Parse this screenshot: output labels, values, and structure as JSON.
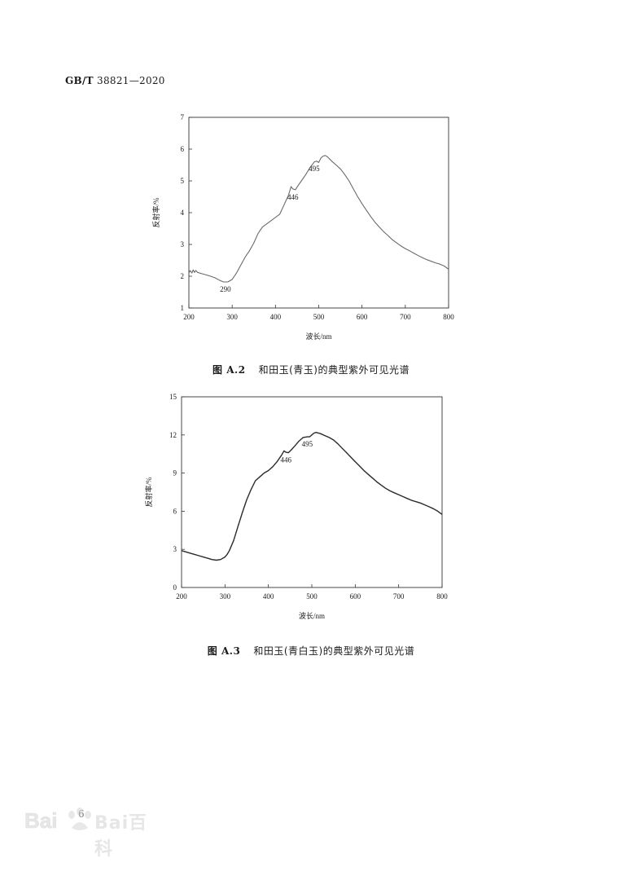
{
  "header": {
    "code_prefix": "GB/T",
    "code_number": "38821—2020"
  },
  "figures": [
    {
      "fig_no": "图 A.2",
      "caption": "和田玉(青玉)的典型紫外可见光谱"
    },
    {
      "fig_no": "图 A.3",
      "caption": "和田玉(青白玉)的典型紫外可见光谱"
    }
  ],
  "page_number": "6",
  "watermark": {
    "text": "Bai百科",
    "logo": "baidu-paw-icon"
  },
  "colors": {
    "line_fig2": "#6a6a6a",
    "line_fig3": "#2a2a2a",
    "axis": "#333333"
  },
  "chart_data": [
    {
      "type": "line",
      "title": "",
      "xlabel": "波长/nm",
      "ylabel": "反射率/%",
      "xlim": [
        200,
        800
      ],
      "ylim": [
        1,
        7
      ],
      "xticks": [
        200,
        300,
        400,
        500,
        600,
        700,
        800
      ],
      "yticks": [
        1,
        2,
        3,
        4,
        5,
        6,
        7
      ],
      "grid": false,
      "series": [
        {
          "x": [
            200,
            203,
            207,
            210,
            213,
            216,
            220,
            230,
            240,
            250,
            260,
            270,
            280,
            290,
            300,
            310,
            320,
            330,
            340,
            350,
            360,
            370,
            380,
            390,
            400,
            410,
            420,
            430,
            436,
            440,
            446,
            452,
            460,
            470,
            480,
            490,
            495,
            500,
            505,
            510,
            515,
            520,
            530,
            540,
            550,
            560,
            570,
            580,
            590,
            600,
            610,
            620,
            630,
            640,
            650,
            660,
            670,
            680,
            690,
            700,
            710,
            720,
            730,
            740,
            750,
            760,
            770,
            780,
            790,
            800
          ],
          "y": [
            2.1,
            2.18,
            2.1,
            2.2,
            2.12,
            2.18,
            2.12,
            2.08,
            2.04,
            2.0,
            1.95,
            1.88,
            1.82,
            1.82,
            1.9,
            2.1,
            2.35,
            2.6,
            2.8,
            3.05,
            3.35,
            3.55,
            3.65,
            3.75,
            3.85,
            3.95,
            4.25,
            4.55,
            4.82,
            4.75,
            4.72,
            4.85,
            5.0,
            5.2,
            5.42,
            5.6,
            5.62,
            5.58,
            5.72,
            5.78,
            5.8,
            5.76,
            5.62,
            5.5,
            5.38,
            5.2,
            5.0,
            4.75,
            4.5,
            4.28,
            4.08,
            3.88,
            3.7,
            3.55,
            3.4,
            3.28,
            3.15,
            3.05,
            2.95,
            2.87,
            2.8,
            2.72,
            2.65,
            2.58,
            2.52,
            2.47,
            2.42,
            2.38,
            2.32,
            2.22
          ]
        }
      ],
      "annotations": [
        {
          "text": "290",
          "x": 290,
          "y": 1.82,
          "pos": "below"
        },
        {
          "text": "446",
          "x": 446,
          "y": 4.72,
          "pos": "below"
        },
        {
          "text": "495",
          "x": 495,
          "y": 5.62,
          "pos": "below"
        }
      ]
    },
    {
      "type": "line",
      "title": "",
      "xlabel": "波长/nm",
      "ylabel": "反射率/%",
      "xlim": [
        200,
        800
      ],
      "ylim": [
        0,
        15
      ],
      "xticks": [
        200,
        300,
        400,
        500,
        600,
        700,
        800
      ],
      "yticks": [
        0,
        3,
        6,
        9,
        12,
        15
      ],
      "grid": false,
      "series": [
        {
          "x": [
            200,
            210,
            220,
            230,
            240,
            250,
            260,
            270,
            280,
            290,
            300,
            305,
            310,
            320,
            330,
            340,
            350,
            360,
            370,
            380,
            390,
            400,
            410,
            420,
            430,
            436,
            440,
            446,
            452,
            460,
            470,
            480,
            490,
            495,
            500,
            505,
            510,
            520,
            530,
            540,
            550,
            560,
            570,
            580,
            590,
            600,
            610,
            620,
            630,
            640,
            650,
            660,
            670,
            680,
            690,
            700,
            710,
            720,
            730,
            740,
            750,
            760,
            770,
            780,
            790,
            800
          ],
          "y": [
            2.9,
            2.8,
            2.7,
            2.6,
            2.5,
            2.4,
            2.3,
            2.2,
            2.15,
            2.2,
            2.4,
            2.6,
            2.9,
            3.7,
            4.8,
            5.9,
            6.9,
            7.7,
            8.4,
            8.7,
            9.0,
            9.2,
            9.5,
            9.9,
            10.4,
            10.75,
            10.65,
            10.6,
            10.8,
            11.1,
            11.5,
            11.8,
            11.85,
            11.85,
            12.0,
            12.15,
            12.2,
            12.1,
            11.95,
            11.8,
            11.6,
            11.3,
            10.95,
            10.6,
            10.25,
            9.9,
            9.55,
            9.2,
            8.9,
            8.6,
            8.3,
            8.05,
            7.8,
            7.6,
            7.45,
            7.3,
            7.15,
            7.0,
            6.85,
            6.75,
            6.65,
            6.5,
            6.35,
            6.2,
            6.0,
            5.75
          ]
        }
      ],
      "annotations": [
        {
          "text": "446",
          "x": 446,
          "y": 10.6,
          "pos": "below"
        },
        {
          "text": "495",
          "x": 495,
          "y": 11.85,
          "pos": "below"
        }
      ]
    }
  ]
}
